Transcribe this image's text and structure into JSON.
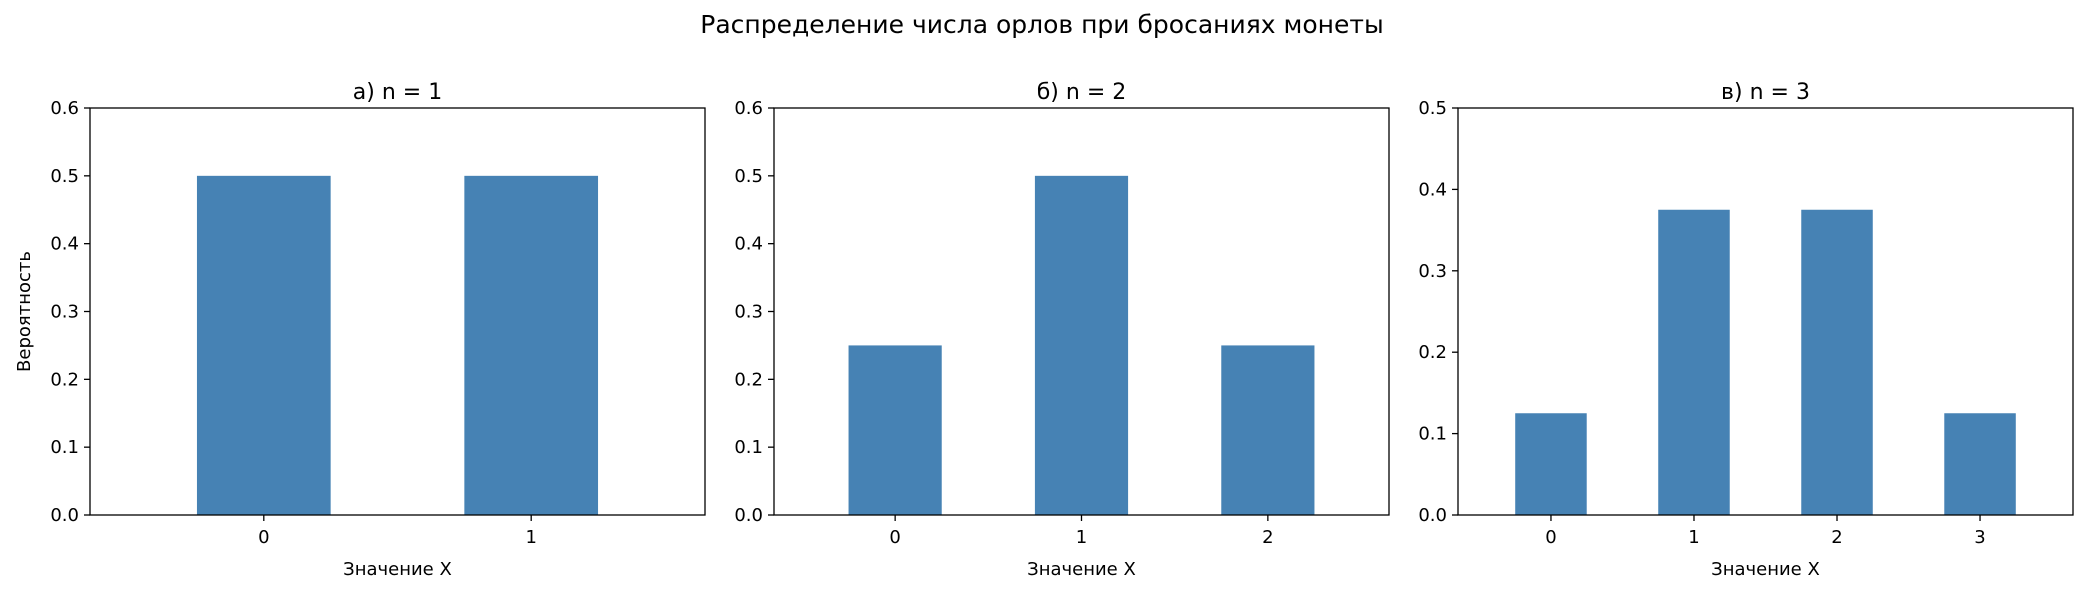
{
  "figure": {
    "suptitle": "Распределение числа орлов при бросаниях монеты",
    "bar_color": "#4682b4"
  },
  "chart_data": [
    {
      "type": "bar",
      "title": "а) n = 1",
      "xlabel": "Значение X",
      "ylabel": "Вероятность",
      "categories": [
        "0",
        "1"
      ],
      "values": [
        0.5,
        0.5
      ],
      "ylim": [
        0,
        0.6
      ],
      "yticks": [
        "0.0",
        "0.1",
        "0.2",
        "0.3",
        "0.4",
        "0.5",
        "0.6"
      ],
      "grid": false
    },
    {
      "type": "bar",
      "title": "б) n = 2",
      "xlabel": "Значение X",
      "ylabel": "",
      "categories": [
        "0",
        "1",
        "2"
      ],
      "values": [
        0.25,
        0.5,
        0.25
      ],
      "ylim": [
        0,
        0.6
      ],
      "yticks": [
        "0.0",
        "0.1",
        "0.2",
        "0.3",
        "0.4",
        "0.5",
        "0.6"
      ],
      "grid": false
    },
    {
      "type": "bar",
      "title": "в) n = 3",
      "xlabel": "Значение X",
      "ylabel": "",
      "categories": [
        "0",
        "1",
        "2",
        "3"
      ],
      "values": [
        0.125,
        0.375,
        0.375,
        0.125
      ],
      "ylim": [
        0,
        0.5
      ],
      "yticks": [
        "0.0",
        "0.1",
        "0.2",
        "0.3",
        "0.4",
        "0.5"
      ],
      "grid": false
    }
  ]
}
